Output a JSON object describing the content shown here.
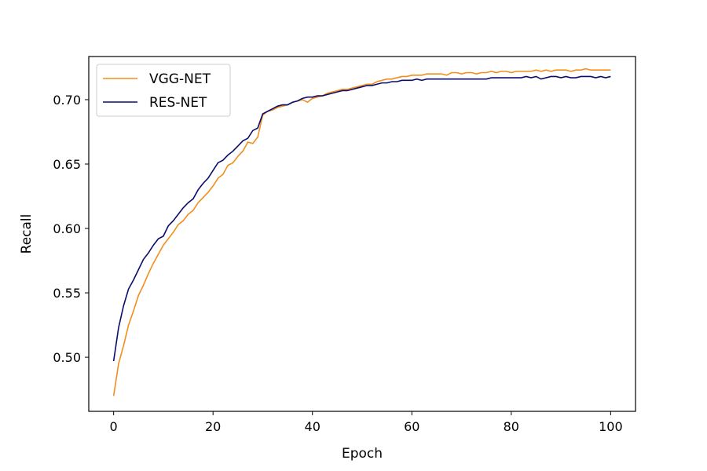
{
  "chart_data": {
    "type": "line",
    "title": "",
    "xlabel": "Epoch",
    "ylabel": "Recall",
    "xlim": [
      -5,
      105
    ],
    "ylim": [
      0.458,
      0.7335
    ],
    "xticks": [
      0,
      20,
      40,
      60,
      80,
      100
    ],
    "yticks": [
      0.5,
      0.55,
      0.6,
      0.65,
      0.7
    ],
    "xtick_labels": [
      "0",
      "20",
      "40",
      "60",
      "80",
      "100"
    ],
    "ytick_labels": [
      "0.50",
      "0.55",
      "0.60",
      "0.65",
      "0.70"
    ],
    "grid": false,
    "legend_position": "upper-left",
    "x": [
      0,
      1,
      2,
      3,
      4,
      5,
      6,
      7,
      8,
      9,
      10,
      11,
      12,
      13,
      14,
      15,
      16,
      17,
      18,
      19,
      20,
      21,
      22,
      23,
      24,
      25,
      26,
      27,
      28,
      29,
      30,
      31,
      32,
      33,
      34,
      35,
      36,
      37,
      38,
      39,
      40,
      41,
      42,
      43,
      44,
      45,
      46,
      47,
      48,
      49,
      50,
      51,
      52,
      53,
      54,
      55,
      56,
      57,
      58,
      59,
      60,
      61,
      62,
      63,
      64,
      65,
      66,
      67,
      68,
      69,
      70,
      71,
      72,
      73,
      74,
      75,
      76,
      77,
      78,
      79,
      80,
      81,
      82,
      83,
      84,
      85,
      86,
      87,
      88,
      89,
      90,
      91,
      92,
      93,
      94,
      95,
      96,
      97,
      98,
      99,
      100
    ],
    "series": [
      {
        "name": "VGG-NET",
        "color": "#f28e1c",
        "values": [
          0.47,
          0.495,
          0.509,
          0.525,
          0.536,
          0.548,
          0.556,
          0.565,
          0.573,
          0.58,
          0.587,
          0.592,
          0.597,
          0.603,
          0.606,
          0.611,
          0.614,
          0.62,
          0.624,
          0.628,
          0.633,
          0.639,
          0.642,
          0.649,
          0.651,
          0.656,
          0.66,
          0.667,
          0.666,
          0.671,
          0.688,
          0.691,
          0.692,
          0.694,
          0.695,
          0.696,
          0.698,
          0.699,
          0.7,
          0.698,
          0.701,
          0.702,
          0.703,
          0.705,
          0.706,
          0.707,
          0.708,
          0.708,
          0.709,
          0.71,
          0.711,
          0.712,
          0.712,
          0.714,
          0.715,
          0.716,
          0.716,
          0.717,
          0.718,
          0.718,
          0.719,
          0.719,
          0.719,
          0.72,
          0.72,
          0.72,
          0.72,
          0.719,
          0.721,
          0.721,
          0.72,
          0.721,
          0.721,
          0.72,
          0.721,
          0.721,
          0.722,
          0.721,
          0.722,
          0.722,
          0.721,
          0.722,
          0.722,
          0.722,
          0.722,
          0.723,
          0.722,
          0.723,
          0.722,
          0.723,
          0.723,
          0.723,
          0.722,
          0.723,
          0.723,
          0.724,
          0.723,
          0.723,
          0.723,
          0.723,
          0.723
        ]
      },
      {
        "name": "RES-NET",
        "color": "#0c0c6e",
        "values": [
          0.497,
          0.523,
          0.54,
          0.553,
          0.56,
          0.568,
          0.576,
          0.581,
          0.587,
          0.592,
          0.594,
          0.602,
          0.606,
          0.611,
          0.616,
          0.62,
          0.623,
          0.63,
          0.635,
          0.639,
          0.645,
          0.651,
          0.653,
          0.657,
          0.66,
          0.664,
          0.668,
          0.67,
          0.676,
          0.678,
          0.689,
          0.691,
          0.693,
          0.695,
          0.696,
          0.696,
          0.698,
          0.699,
          0.701,
          0.702,
          0.702,
          0.703,
          0.703,
          0.704,
          0.705,
          0.706,
          0.707,
          0.707,
          0.708,
          0.709,
          0.71,
          0.711,
          0.711,
          0.712,
          0.713,
          0.713,
          0.714,
          0.714,
          0.715,
          0.715,
          0.715,
          0.716,
          0.715,
          0.716,
          0.716,
          0.716,
          0.716,
          0.716,
          0.716,
          0.716,
          0.716,
          0.716,
          0.716,
          0.716,
          0.716,
          0.716,
          0.717,
          0.717,
          0.717,
          0.717,
          0.717,
          0.717,
          0.717,
          0.718,
          0.717,
          0.718,
          0.716,
          0.717,
          0.718,
          0.718,
          0.717,
          0.718,
          0.717,
          0.717,
          0.718,
          0.718,
          0.718,
          0.717,
          0.718,
          0.717,
          0.718
        ]
      }
    ]
  }
}
